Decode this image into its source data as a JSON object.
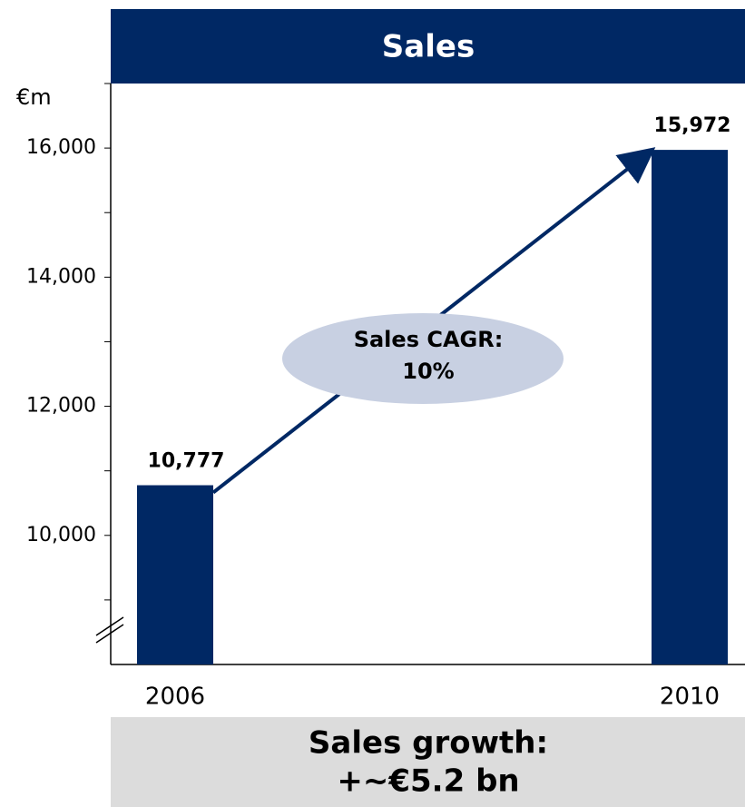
{
  "chart_data": {
    "type": "bar",
    "title": "Sales",
    "y_unit": "€m",
    "categories": [
      "2006",
      "2010"
    ],
    "values": [
      10777,
      15972
    ],
    "value_labels": [
      "10,777",
      "15,972"
    ],
    "color": "#002864",
    "ylim": [
      8000,
      17000
    ],
    "yticks": [
      {
        "value": 10000,
        "label": "10,000"
      },
      {
        "value": 12000,
        "label": "12,000"
      },
      {
        "value": 14000,
        "label": "14,000"
      },
      {
        "value": 16000,
        "label": "16,000"
      }
    ],
    "yticks_minor": [
      9000,
      11000,
      13000,
      15000,
      17000
    ],
    "annotation": [
      "Sales CAGR:",
      "10%"
    ],
    "footer": [
      "Sales growth:",
      "+~€5.2 bn"
    ]
  }
}
